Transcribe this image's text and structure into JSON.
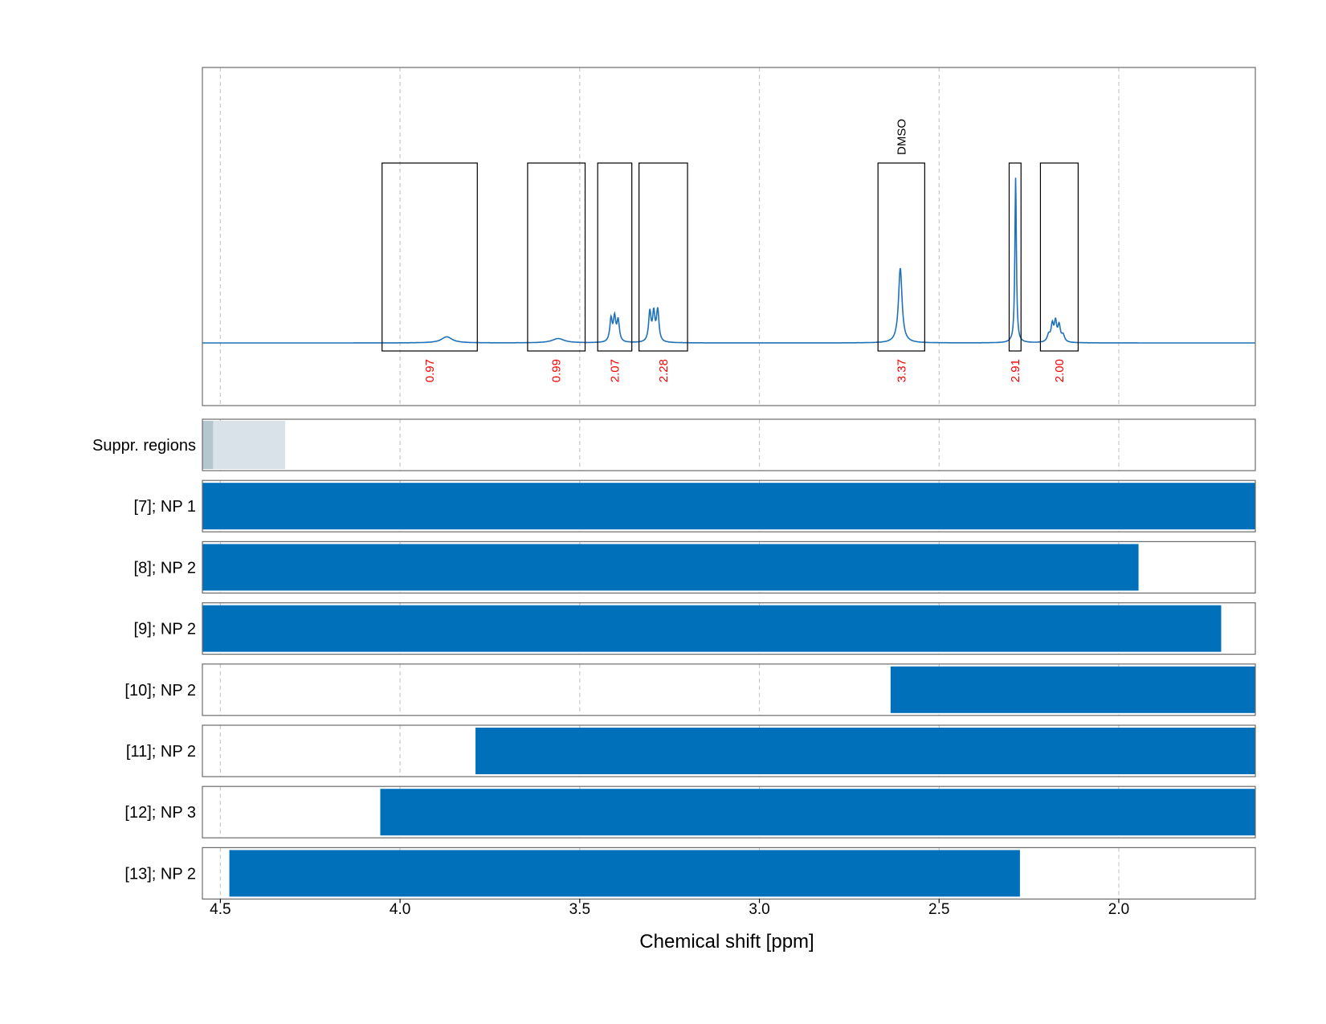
{
  "chart_data": {
    "type": "line",
    "xlabel": "Chemical shift [ppm]",
    "x_range": [
      4.55,
      1.62
    ],
    "x_ticks": [
      {
        "value": 4.5,
        "label": "4.5"
      },
      {
        "value": 4.0,
        "label": "4.0"
      },
      {
        "value": 3.5,
        "label": "3.5"
      },
      {
        "value": 3.0,
        "label": "3.0"
      },
      {
        "value": 2.5,
        "label": "2.5"
      },
      {
        "value": 2.0,
        "label": "2.0"
      }
    ],
    "grid": true,
    "spectrum": {
      "baseline": 0,
      "peaks": [
        {
          "center": 3.87,
          "height": 0.035,
          "width": 0.018
        },
        {
          "center": 3.56,
          "height": 0.025,
          "width": 0.02
        },
        {
          "center": 3.413,
          "height": 0.13,
          "width": 0.004
        },
        {
          "center": 3.403,
          "height": 0.135,
          "width": 0.004
        },
        {
          "center": 3.393,
          "height": 0.12,
          "width": 0.004
        },
        {
          "center": 3.305,
          "height": 0.17,
          "width": 0.004
        },
        {
          "center": 3.294,
          "height": 0.16,
          "width": 0.004
        },
        {
          "center": 3.283,
          "height": 0.18,
          "width": 0.004
        },
        {
          "center": 2.608,
          "height": 0.43,
          "width": 0.006
        },
        {
          "center": 2.287,
          "height": 0.95,
          "width": 0.0025
        },
        {
          "center": 2.195,
          "height": 0.04,
          "width": 0.005
        },
        {
          "center": 2.185,
          "height": 0.095,
          "width": 0.004
        },
        {
          "center": 2.176,
          "height": 0.11,
          "width": 0.004
        },
        {
          "center": 2.166,
          "height": 0.09,
          "width": 0.004
        },
        {
          "center": 2.155,
          "height": 0.04,
          "width": 0.005
        }
      ]
    },
    "integration_regions": [
      {
        "from": 4.05,
        "to": 3.785,
        "integral": "0.97"
      },
      {
        "from": 3.645,
        "to": 3.485,
        "integral": "0.99"
      },
      {
        "from": 3.45,
        "to": 3.355,
        "integral": "2.07"
      },
      {
        "from": 3.335,
        "to": 3.2,
        "integral": "2.28"
      },
      {
        "from": 2.67,
        "to": 2.54,
        "integral": "3.37",
        "label": "DMSO"
      },
      {
        "from": 2.305,
        "to": 2.272,
        "integral": "2.91"
      },
      {
        "from": 2.218,
        "to": 2.113,
        "integral": "2.00"
      }
    ],
    "tracks": [
      {
        "label": "Suppr. regions",
        "type": "suppressed",
        "regions": [
          {
            "from": 4.55,
            "to": 4.52,
            "shade": "dark"
          },
          {
            "from": 4.52,
            "to": 4.32,
            "shade": "light"
          }
        ]
      },
      {
        "label": "[7]; NP 1",
        "from": 4.55,
        "to": 1.62
      },
      {
        "label": "[8]; NP 2",
        "from": 4.55,
        "to": 1.945
      },
      {
        "label": "[9]; NP 2",
        "from": 4.55,
        "to": 1.715
      },
      {
        "label": "[10]; NP 2",
        "from": 2.635,
        "to": 1.62
      },
      {
        "label": "[11]; NP 2",
        "from": 3.79,
        "to": 1.62
      },
      {
        "label": "[12]; NP 3",
        "from": 4.055,
        "to": 1.62
      },
      {
        "label": "[13]; NP 2",
        "from": 4.475,
        "to": 2.275
      }
    ]
  },
  "colors": {
    "spectrum": "#1f72b8",
    "bar": "#0070bb",
    "integral_text": "#ff0000",
    "suppressed_dark": "#b6c6cf",
    "suppressed_light": "#d9e2e8",
    "frame": "#6b6b6b",
    "grid": "#c8c8c8"
  }
}
